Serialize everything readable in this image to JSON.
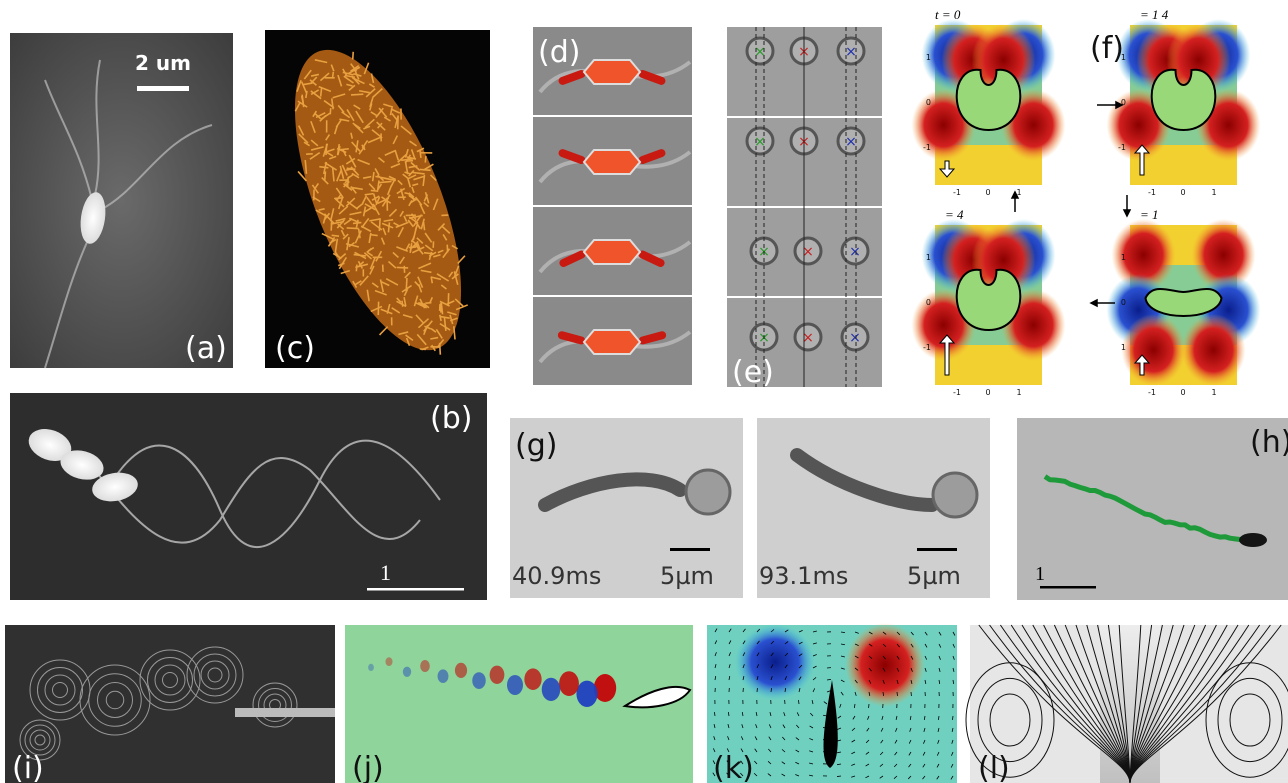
{
  "panels": {
    "a": "(a)",
    "b": "(b)",
    "c": "(c)",
    "d": "(d)",
    "e": "(e)",
    "f": "(f)",
    "g": "(g)",
    "h": "(h)",
    "i": "(i)",
    "j": "(j)",
    "k": "(k)",
    "l": "(l)"
  },
  "a_scale": "2 um",
  "b_scale": "1",
  "h_scale": "1",
  "g_frames": [
    {
      "time": "40.9ms",
      "scale": "5µm"
    },
    {
      "time": "93.1ms",
      "scale": "5µm"
    }
  ],
  "f_frames": [
    {
      "title": "t = 0",
      "yticks": [
        "1",
        "0",
        "-1"
      ],
      "xticks": [
        "-1",
        "0",
        "1"
      ]
    },
    {
      "title": "= 1 4",
      "yticks": [
        "1",
        "0",
        "-1"
      ],
      "xticks": [
        "-1",
        "0",
        "1"
      ]
    },
    {
      "title": "= 4",
      "yticks": [
        "1",
        "0",
        "-1"
      ],
      "xticks": [
        "-1",
        "0",
        "1"
      ]
    },
    {
      "title": "= 1",
      "yticks": [
        "1",
        "0",
        "1"
      ],
      "xticks": [
        "-1",
        "0",
        "1"
      ]
    }
  ]
}
